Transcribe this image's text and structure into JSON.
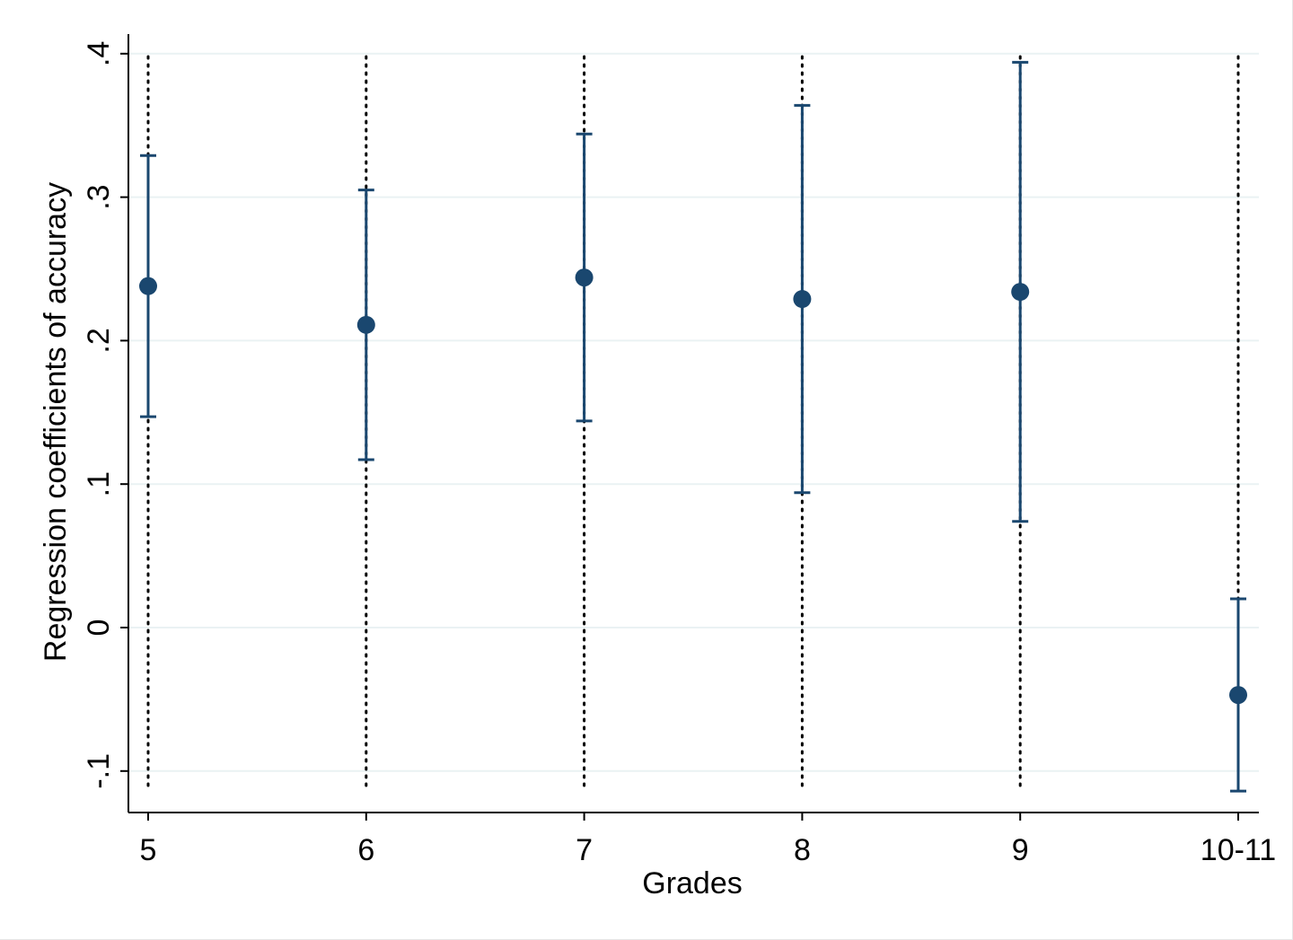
{
  "chart_data": {
    "type": "scatter",
    "subtype": "coefficient plot with confidence intervals",
    "title": "",
    "xlabel": "Grades",
    "ylabel": "Regression coefficients of accuracy",
    "categories": [
      "5",
      "6",
      "7",
      "8",
      "9",
      "10-11"
    ],
    "series": [
      {
        "values": [
          0.238,
          0.211,
          0.244,
          0.229,
          0.234,
          -0.047
        ],
        "ci_lower": [
          0.147,
          0.117,
          0.144,
          0.094,
          0.074,
          -0.114
        ],
        "ci_upper": [
          0.329,
          0.305,
          0.344,
          0.364,
          0.394,
          0.02
        ]
      }
    ],
    "ylim": [
      -0.115,
      0.4
    ],
    "yticks": [
      -0.1,
      0,
      0.1,
      0.2,
      0.3,
      0.4
    ],
    "ytick_labels": [
      "-.1",
      "0",
      ".1",
      ".2",
      ".3",
      ".4"
    ],
    "grid": true,
    "reference_lines": "dotted vertical line at each grade",
    "colors": {
      "marker": "#1a476f",
      "gridline": "#eaf2f3",
      "axis": "#000000"
    }
  }
}
